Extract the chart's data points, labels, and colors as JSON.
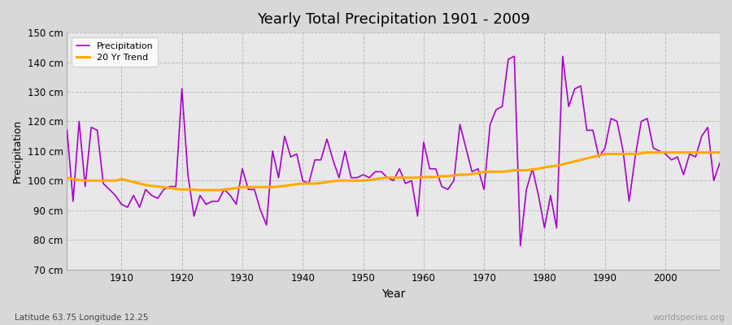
{
  "title": "Yearly Total Precipitation 1901 - 2009",
  "xlabel": "Year",
  "ylabel": "Precipitation",
  "subtitle_left": "Latitude 63.75 Longitude 12.25",
  "subtitle_right": "worldspecies.org",
  "bg_color": "#d8d8d8",
  "plot_bg_color": "#e8e8e8",
  "precip_color": "#aa00cc",
  "trend_color": "#ffaa00",
  "ylim": [
    70,
    150
  ],
  "yticks": [
    70,
    80,
    90,
    100,
    110,
    120,
    130,
    140,
    150
  ],
  "years": [
    1901,
    1902,
    1903,
    1904,
    1905,
    1906,
    1907,
    1908,
    1909,
    1910,
    1911,
    1912,
    1913,
    1914,
    1915,
    1916,
    1917,
    1918,
    1919,
    1920,
    1921,
    1922,
    1923,
    1924,
    1925,
    1926,
    1927,
    1928,
    1929,
    1930,
    1931,
    1932,
    1933,
    1934,
    1935,
    1936,
    1937,
    1938,
    1939,
    1940,
    1941,
    1942,
    1943,
    1944,
    1945,
    1946,
    1947,
    1948,
    1949,
    1950,
    1951,
    1952,
    1953,
    1954,
    1955,
    1956,
    1957,
    1958,
    1959,
    1960,
    1961,
    1962,
    1963,
    1964,
    1965,
    1966,
    1967,
    1968,
    1969,
    1970,
    1971,
    1972,
    1973,
    1974,
    1975,
    1976,
    1977,
    1978,
    1979,
    1980,
    1981,
    1982,
    1983,
    1984,
    1985,
    1986,
    1987,
    1988,
    1989,
    1990,
    1991,
    1992,
    1993,
    1994,
    1995,
    1996,
    1997,
    1998,
    1999,
    2000,
    2001,
    2002,
    2003,
    2004,
    2005,
    2006,
    2007,
    2008,
    2009
  ],
  "precip": [
    117,
    93,
    120,
    98,
    118,
    117,
    99,
    97,
    95,
    92,
    91,
    95,
    91,
    97,
    95,
    94,
    97,
    98,
    98,
    131,
    102,
    88,
    95,
    92,
    93,
    93,
    97,
    95,
    92,
    104,
    97,
    97,
    90,
    85,
    110,
    101,
    115,
    108,
    109,
    100,
    99,
    107,
    107,
    114,
    107,
    101,
    110,
    101,
    101,
    102,
    101,
    103,
    103,
    101,
    100,
    104,
    99,
    100,
    88,
    113,
    104,
    104,
    98,
    97,
    100,
    119,
    111,
    103,
    104,
    97,
    119,
    124,
    125,
    141,
    142,
    78,
    97,
    104,
    95,
    84,
    95,
    84,
    142,
    125,
    131,
    132,
    117,
    117,
    108,
    111,
    121,
    120,
    110,
    93,
    108,
    120,
    121,
    111,
    110,
    109,
    107,
    108,
    102,
    109,
    108,
    115,
    118,
    100,
    106
  ],
  "trend": [
    101.0,
    100.5,
    100.2,
    100.0,
    100.0,
    100.0,
    100.0,
    100.0,
    100.0,
    100.5,
    100.0,
    99.5,
    99.0,
    98.5,
    98.2,
    98.0,
    97.8,
    97.5,
    97.2,
    97.0,
    97.0,
    97.0,
    96.8,
    96.8,
    96.8,
    96.8,
    97.0,
    97.2,
    97.5,
    97.8,
    97.8,
    97.8,
    97.8,
    97.8,
    97.8,
    98.0,
    98.2,
    98.5,
    98.8,
    99.0,
    99.0,
    99.0,
    99.2,
    99.5,
    99.8,
    100.0,
    100.0,
    100.0,
    100.0,
    100.0,
    100.2,
    100.5,
    100.8,
    101.0,
    101.0,
    101.0,
    101.0,
    101.0,
    101.0,
    101.2,
    101.2,
    101.2,
    101.5,
    101.5,
    101.8,
    102.0,
    102.0,
    102.2,
    102.5,
    103.0,
    103.0,
    103.0,
    103.0,
    103.2,
    103.5,
    103.5,
    103.5,
    103.8,
    104.0,
    104.5,
    104.8,
    105.0,
    105.5,
    106.0,
    106.5,
    107.0,
    107.5,
    108.0,
    108.5,
    109.0,
    109.0,
    109.0,
    109.0,
    109.0,
    109.0,
    109.2,
    109.5,
    109.5,
    109.5,
    109.5,
    109.5,
    109.5,
    109.5,
    109.5,
    109.5,
    109.5,
    109.5,
    109.5,
    109.5
  ]
}
